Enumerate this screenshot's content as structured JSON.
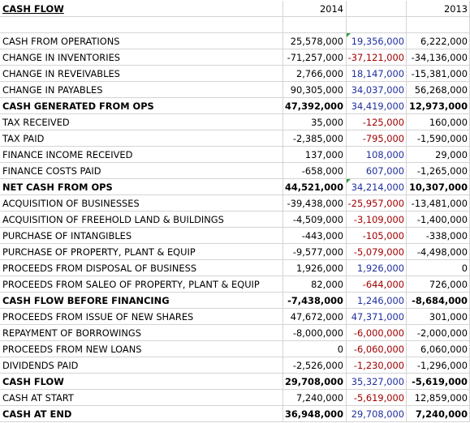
{
  "header": {
    "title": "CASH FLOW",
    "col_a": "2014",
    "col_b": "",
    "col_c": "2013"
  },
  "rows": [
    {
      "label": "CASH FROM OPERATIONS",
      "a": "25,578,000",
      "b": "19,356,000",
      "c": "6,222,000",
      "bold": false,
      "bsign": "pos",
      "flag": true
    },
    {
      "label": "CHANGE IN INVENTORIES",
      "a": "-71,257,000",
      "b": "-37,121,000",
      "c": "-34,136,000",
      "bold": false,
      "bsign": "neg",
      "flag": false
    },
    {
      "label": "CHANGE IN REVEIVABLES",
      "a": "2,766,000",
      "b": "18,147,000",
      "c": "-15,381,000",
      "bold": false,
      "bsign": "pos",
      "flag": false
    },
    {
      "label": "CHANGE IN PAYABLES",
      "a": "90,305,000",
      "b": "34,037,000",
      "c": "56,268,000",
      "bold": false,
      "bsign": "pos",
      "flag": false
    },
    {
      "label": "CASH GENERATED FROM OPS",
      "a": "47,392,000",
      "b": "34,419,000",
      "c": "12,973,000",
      "bold": true,
      "bsign": "pos",
      "flag": false
    },
    {
      "label": "TAX RECEIVED",
      "a": "35,000",
      "b": "-125,000",
      "c": "160,000",
      "bold": false,
      "bsign": "neg",
      "flag": false
    },
    {
      "label": "TAX PAID",
      "a": "-2,385,000",
      "b": "-795,000",
      "c": "-1,590,000",
      "bold": false,
      "bsign": "neg",
      "flag": false
    },
    {
      "label": "FINANCE INCOME RECEIVED",
      "a": "137,000",
      "b": "108,000",
      "c": "29,000",
      "bold": false,
      "bsign": "pos",
      "flag": false
    },
    {
      "label": "FINANCE COSTS PAID",
      "a": "-658,000",
      "b": "607,000",
      "c": "-1,265,000",
      "bold": false,
      "bsign": "pos",
      "flag": false
    },
    {
      "label": "NET CASH FROM OPS",
      "a": "44,521,000",
      "b": "34,214,000",
      "c": "10,307,000",
      "bold": true,
      "bsign": "pos",
      "flag": true
    },
    {
      "label": "ACQUISITION OF BUSINESSES",
      "a": "-39,438,000",
      "b": "-25,957,000",
      "c": "-13,481,000",
      "bold": false,
      "bsign": "neg",
      "flag": false
    },
    {
      "label": "ACQUISITION OF FREEHOLD LAND & BUILDINGS",
      "a": "-4,509,000",
      "b": "-3,109,000",
      "c": "-1,400,000",
      "bold": false,
      "bsign": "neg",
      "flag": false
    },
    {
      "label": "PURCHASE OF INTANGIBLES",
      "a": "-443,000",
      "b": "-105,000",
      "c": "-338,000",
      "bold": false,
      "bsign": "neg",
      "flag": false
    },
    {
      "label": "PURCHASE OF PROPERTY, PLANT & EQUIP",
      "a": "-9,577,000",
      "b": "-5,079,000",
      "c": "-4,498,000",
      "bold": false,
      "bsign": "neg",
      "flag": false
    },
    {
      "label": "PROCEEDS FROM DISPOSAL OF BUSINESS",
      "a": "1,926,000",
      "b": "1,926,000",
      "c": "0",
      "bold": false,
      "bsign": "pos",
      "flag": false
    },
    {
      "label": "PROCEEDS FROM SALEO OF PROPERTY, PLANT & EQUIP",
      "a": "82,000",
      "b": "-644,000",
      "c": "726,000",
      "bold": false,
      "bsign": "neg",
      "flag": false
    },
    {
      "label": "CASH FLOW BEFORE FINANCING",
      "a": "-7,438,000",
      "b": "1,246,000",
      "c": "-8,684,000",
      "bold": true,
      "bsign": "pos",
      "flag": false
    },
    {
      "label": "PROCEEDS FROM ISSUE OF NEW SHARES",
      "a": "47,672,000",
      "b": "47,371,000",
      "c": "301,000",
      "bold": false,
      "bsign": "pos",
      "flag": false
    },
    {
      "label": "REPAYMENT OF BORROWINGS",
      "a": "-8,000,000",
      "b": "-6,000,000",
      "c": "-2,000,000",
      "bold": false,
      "bsign": "neg",
      "flag": false
    },
    {
      "label": "PROCEEDS FROM NEW LOANS",
      "a": "0",
      "b": "-6,060,000",
      "c": "6,060,000",
      "bold": false,
      "bsign": "neg",
      "flag": false
    },
    {
      "label": "DIVIDENDS PAID",
      "a": "-2,526,000",
      "b": "-1,230,000",
      "c": "-1,296,000",
      "bold": false,
      "bsign": "neg",
      "flag": false
    },
    {
      "label": "CASH FLOW",
      "a": "29,708,000",
      "b": "35,327,000",
      "c": "-5,619,000",
      "bold": true,
      "bsign": "pos",
      "flag": false
    },
    {
      "label": "CASH AT START",
      "a": "7,240,000",
      "b": "-5,619,000",
      "c": "12,859,000",
      "bold": false,
      "bsign": "neg",
      "flag": false
    },
    {
      "label": "CASH AT END",
      "a": "36,948,000",
      "b": "29,708,000",
      "c": "7,240,000",
      "bold": true,
      "bsign": "pos",
      "flag": false
    }
  ],
  "colors": {
    "positive_value": "#1f2f9e",
    "negative_value": "#a10000",
    "gridline": "#d4d4d4",
    "comment_marker": "#2ea043"
  }
}
